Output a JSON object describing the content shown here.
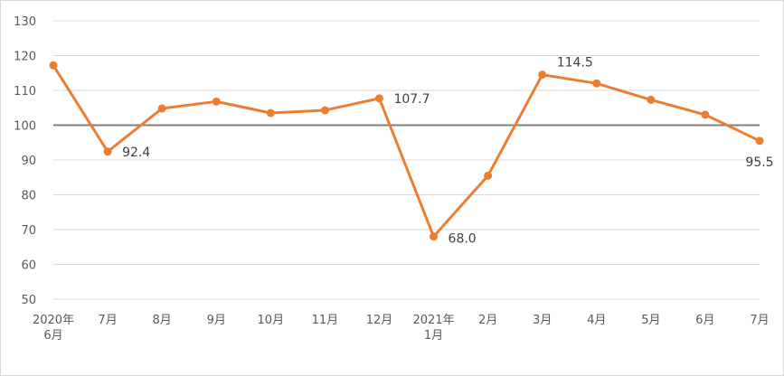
{
  "chart_data": {
    "type": "line",
    "title": "",
    "xlabel": "",
    "ylabel": "",
    "ylim": [
      50,
      130
    ],
    "ytick_step": 10,
    "grid": true,
    "legend": "none",
    "reference_line": {
      "y": 100,
      "color": "#7f7f7f"
    },
    "categories": [
      [
        "2020年",
        "6月"
      ],
      [
        "7月"
      ],
      [
        "8月"
      ],
      [
        "9月"
      ],
      [
        "10月"
      ],
      [
        "11月"
      ],
      [
        "12月"
      ],
      [
        "2021年",
        "1月"
      ],
      [
        "2月"
      ],
      [
        "3月"
      ],
      [
        "4月"
      ],
      [
        "5月"
      ],
      [
        "6月"
      ],
      [
        "7月"
      ]
    ],
    "series": [
      {
        "color": "#ed7d31",
        "values": [
          117.2,
          92.4,
          104.8,
          106.8,
          103.5,
          104.3,
          107.7,
          68.0,
          85.5,
          114.5,
          112.0,
          107.3,
          103.0,
          95.5
        ]
      }
    ],
    "data_labels": [
      {
        "index": 1,
        "text": "92.4"
      },
      {
        "index": 6,
        "text": "107.7"
      },
      {
        "index": 7,
        "text": "68.0"
      },
      {
        "index": 9,
        "text": "114.5"
      },
      {
        "index": 13,
        "text": "95.5"
      }
    ]
  }
}
